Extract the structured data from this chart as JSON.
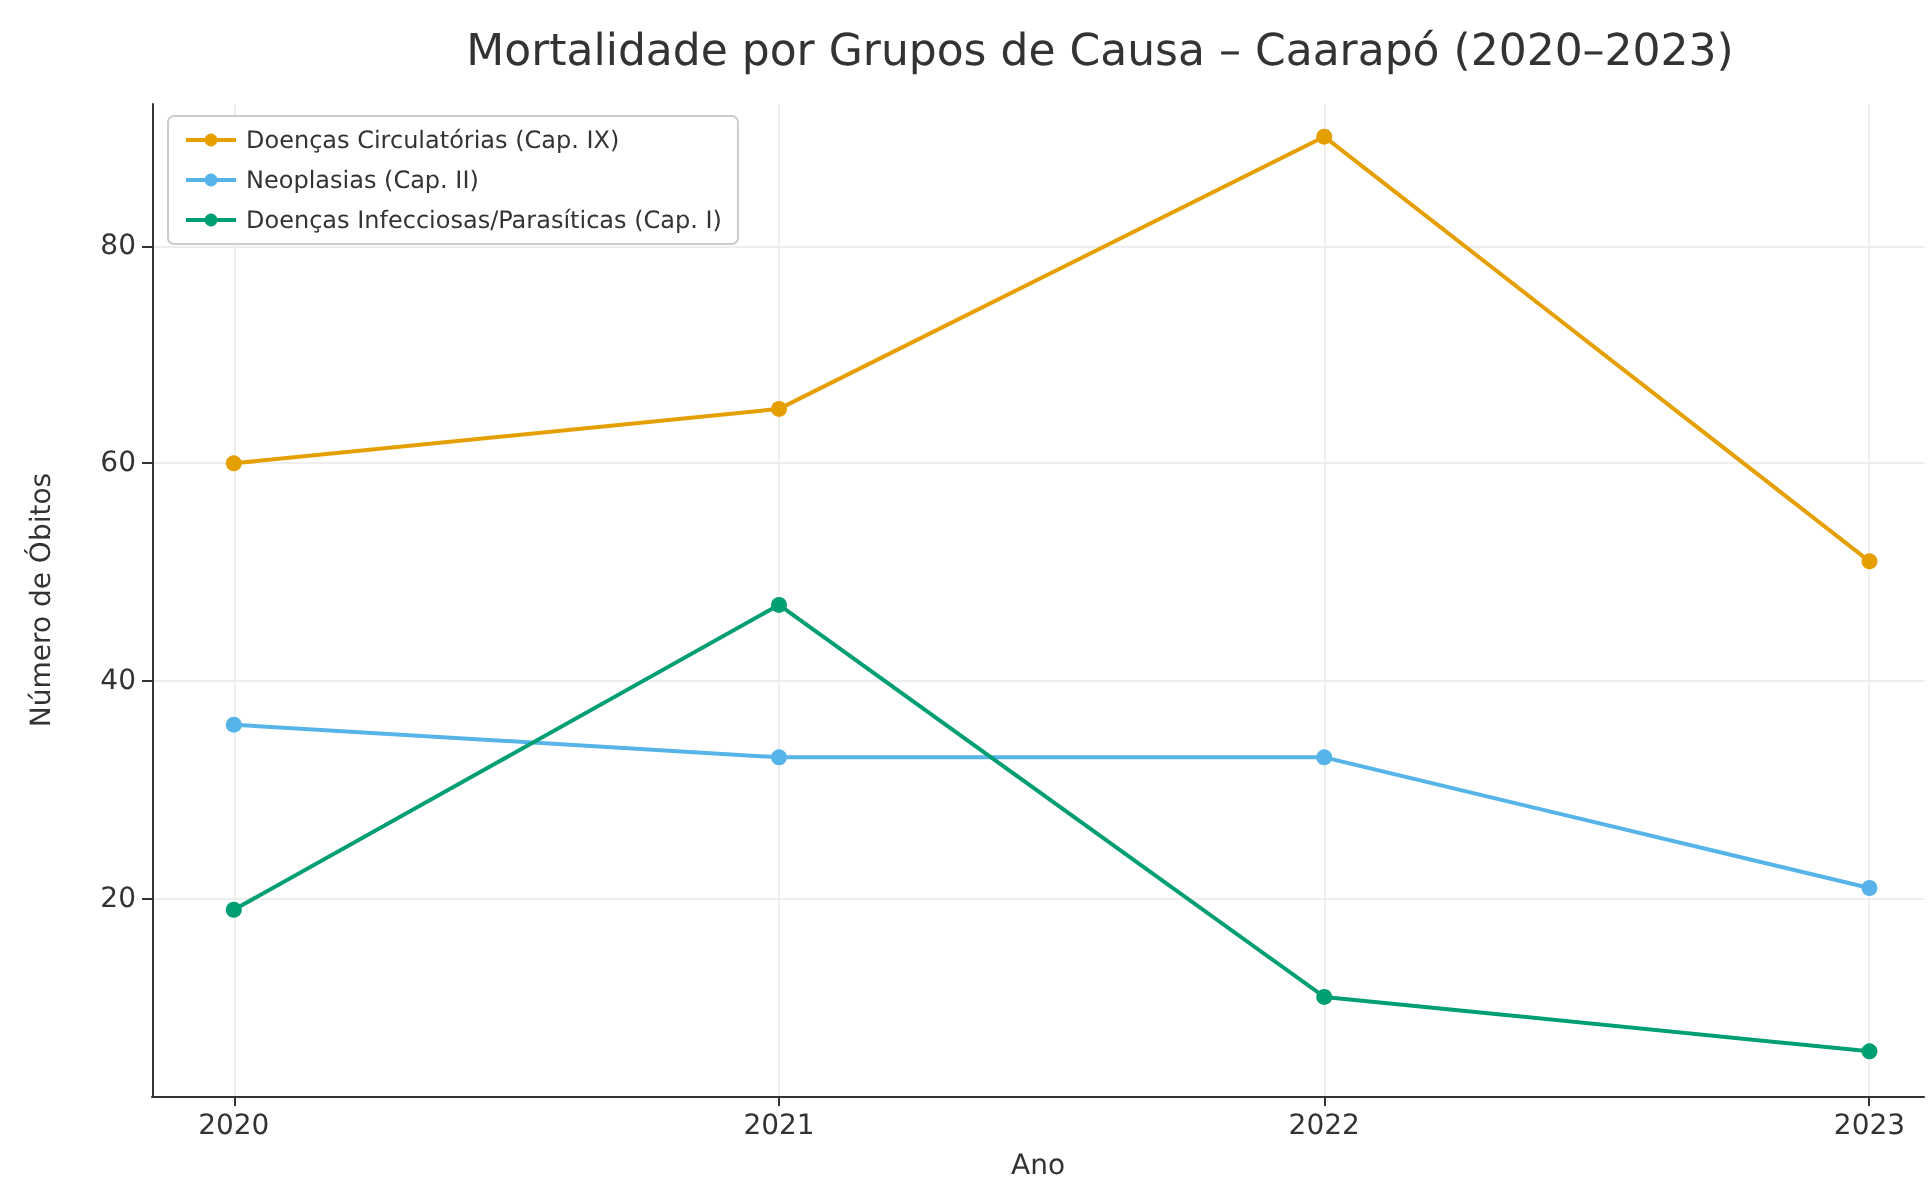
{
  "chart_data": {
    "type": "line",
    "title": "Mortalidade por Grupos de Causa – Caarapó (2020–2023)",
    "xlabel": "Ano",
    "ylabel": "Número de Óbitos",
    "x": [
      2020,
      2021,
      2022,
      2023
    ],
    "series": [
      {
        "name": "Doenças Circulatórias (Cap. IX)",
        "color": "#e69f00",
        "values": [
          60,
          65,
          90,
          51
        ]
      },
      {
        "name": "Neoplasias (Cap. II)",
        "color": "#56b4e9",
        "values": [
          36,
          33,
          33,
          21
        ]
      },
      {
        "name": "Doenças Infecciosas/Parasíticas (Cap. I)",
        "color": "#009e73",
        "values": [
          19,
          47,
          11,
          6
        ]
      }
    ],
    "xlim": [
      2019.85,
      2023.1
    ],
    "xticks": [
      2020,
      2021,
      2022,
      2023
    ],
    "ylim": [
      1.9,
      93
    ],
    "yticks": [
      20,
      40,
      60,
      80
    ],
    "grid": true,
    "legend": "top left",
    "marker": "circle",
    "line_style": "solid"
  }
}
